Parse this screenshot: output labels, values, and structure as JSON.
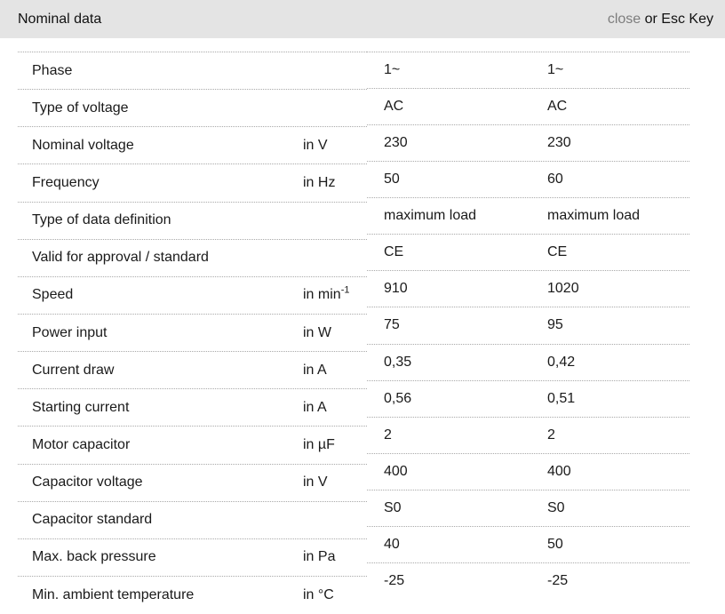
{
  "header": {
    "title": "Nominal data",
    "close_label": "close",
    "close_suffix": " or Esc Key"
  },
  "table": {
    "rows": [
      {
        "label": "Phase",
        "unit": "",
        "values": [
          "1~",
          "1~"
        ]
      },
      {
        "label": "Type of voltage",
        "unit": "",
        "values": [
          "AC",
          "AC"
        ]
      },
      {
        "label": "Nominal voltage",
        "unit": "in V",
        "values": [
          "230",
          "230"
        ]
      },
      {
        "label": "Frequency",
        "unit": "in Hz",
        "values": [
          "50",
          "60"
        ]
      },
      {
        "label": "Type of data definition",
        "unit": "",
        "values": [
          "maximum load",
          "maximum load"
        ]
      },
      {
        "label": "Valid for approval / standard",
        "unit": "",
        "values": [
          "CE",
          "CE"
        ]
      },
      {
        "label": "Speed",
        "unit": "in min",
        "unit_sup": "-1",
        "values": [
          "910",
          "1020"
        ]
      },
      {
        "label": "Power input",
        "unit": "in W",
        "values": [
          "75",
          "95"
        ]
      },
      {
        "label": "Current draw",
        "unit": "in A",
        "values": [
          "0,35",
          "0,42"
        ]
      },
      {
        "label": "Starting current",
        "unit": "in A",
        "values": [
          "0,56",
          "0,51"
        ]
      },
      {
        "label": "Motor capacitor",
        "unit": "in µF",
        "values": [
          "2",
          "2"
        ]
      },
      {
        "label": "Capacitor voltage",
        "unit": "in V",
        "values": [
          "400",
          "400"
        ]
      },
      {
        "label": "Capacitor standard",
        "unit": "",
        "values": [
          "S0",
          "S0"
        ]
      },
      {
        "label": "Max. back pressure",
        "unit": "in Pa",
        "values": [
          "40",
          "50"
        ]
      },
      {
        "label": "Min. ambient temperature",
        "unit": "in °C",
        "values": [
          "-25",
          "-25"
        ]
      }
    ]
  },
  "colors": {
    "header_bg": "#e4e4e4",
    "divider": "#a9a9a9",
    "text": "#1a1a1a",
    "close_link": "#7d7d7d"
  }
}
